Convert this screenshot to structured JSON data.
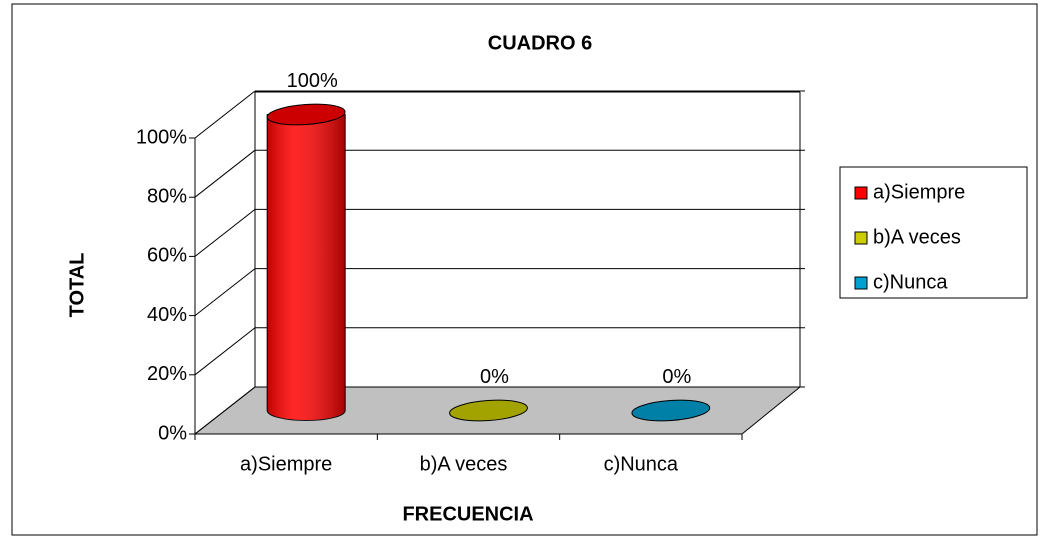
{
  "chart_data": {
    "type": "bar3d",
    "title": "CUADRO  6",
    "x_label": "FRECUENCIA",
    "y_label": "TOTAL",
    "categories": [
      "a)Siempre",
      "b)A veces",
      "c)Nunca"
    ],
    "values": [
      100,
      0,
      0
    ],
    "value_labels": [
      "100%",
      "0%",
      "0%"
    ],
    "colors": [
      "#ff0000",
      "#cccc00",
      "#00a0d0"
    ],
    "ylim": [
      0,
      100
    ],
    "yticks": [
      {
        "value": 0,
        "label": "0%"
      },
      {
        "value": 20,
        "label": "20%"
      },
      {
        "value": 40,
        "label": "40%"
      },
      {
        "value": 60,
        "label": "60%"
      },
      {
        "value": 80,
        "label": "80%"
      },
      {
        "value": 100,
        "label": "100%"
      }
    ],
    "grid": true,
    "legend": "right"
  }
}
